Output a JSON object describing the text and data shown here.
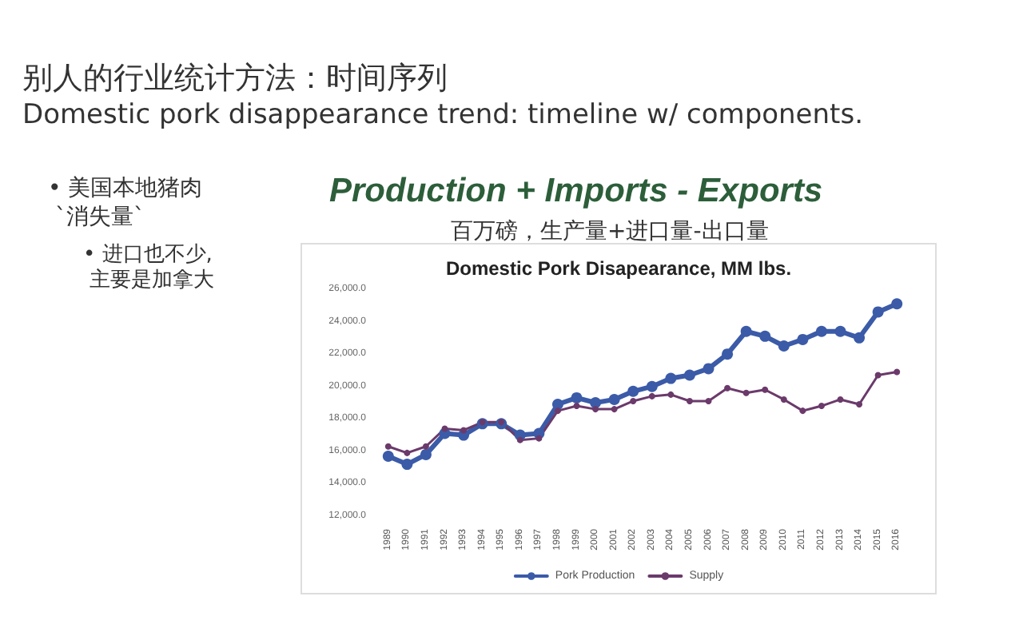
{
  "chart_data": {
    "type": "line",
    "title": "Domestic Pork Disapearance, MM lbs.",
    "annotations": [
      "别人的行业统计方法：时间序列",
      "Domestic pork disappearance trend: timeline w/ components.",
      "• 美国本地猪肉\n `消失量`",
      "• 进口也不少,\n 主要是加拿大",
      "Production + Imports - Exports",
      "百万磅，生产量+进口量-出口量"
    ],
    "categories": [
      "1989",
      "1990",
      "1991",
      "1992",
      "1993",
      "1994",
      "1995",
      "1996",
      "1997",
      "1998",
      "1999",
      "2000",
      "2001",
      "2002",
      "2003",
      "2004",
      "2005",
      "2006",
      "2007",
      "2008",
      "2009",
      "2010",
      "2011",
      "2012",
      "2013",
      "2014",
      "2015",
      "2016"
    ],
    "series": [
      {
        "name": "Pork Production",
        "color": "#3b5ba8",
        "values": [
          15700,
          15200,
          15800,
          17100,
          17000,
          17700,
          17700,
          17000,
          17100,
          18900,
          19300,
          19000,
          19200,
          19700,
          20000,
          20500,
          20700,
          21100,
          22000,
          23400,
          23100,
          22500,
          22900,
          23400,
          23400,
          23000,
          24600,
          25100
        ]
      },
      {
        "name": "Supply",
        "color": "#6b3a6b",
        "values": [
          16300,
          15900,
          16300,
          17400,
          17300,
          17800,
          17800,
          16700,
          16800,
          18500,
          18800,
          18600,
          18600,
          19100,
          19400,
          19500,
          19100,
          19100,
          19900,
          19600,
          19800,
          19200,
          18500,
          18800,
          19200,
          18900,
          20700,
          20900
        ]
      }
    ],
    "ylim": [
      12000,
      26000
    ],
    "yticks": [
      {
        "value": 12000,
        "label": "12,000.0"
      },
      {
        "value": 14000,
        "label": "14,000.0"
      },
      {
        "value": 16000,
        "label": "16,000.0"
      },
      {
        "value": 18000,
        "label": "18,000.0"
      },
      {
        "value": 20000,
        "label": "20,000.0"
      },
      {
        "value": 22000,
        "label": "22,000.0"
      },
      {
        "value": 24000,
        "label": "24,000.0"
      },
      {
        "value": 26000,
        "label": "26,000.0"
      }
    ],
    "grid": false,
    "legend": "bottom",
    "marker": "circle",
    "line_style": "solid"
  }
}
